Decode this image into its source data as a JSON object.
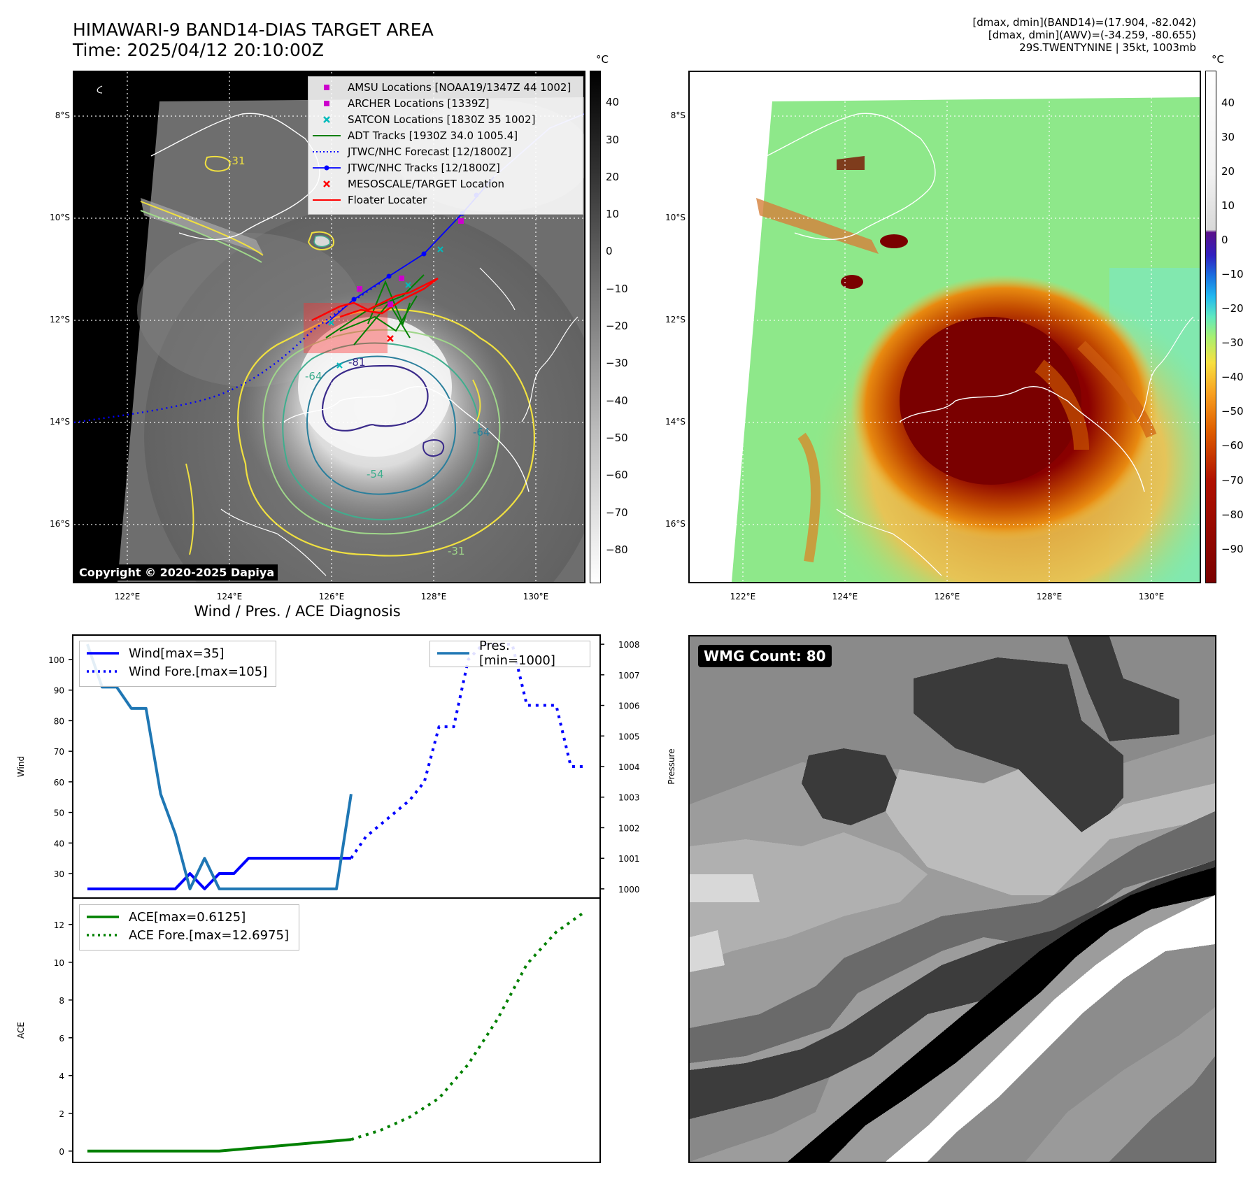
{
  "header": {
    "title_line1": "HIMAWARI-9 BAND14-DIAS TARGET AREA",
    "title_line2": "Time: 2025/04/12 20:10:00Z",
    "info_line1": "[dmax, dmin](BAND14)=(17.904, -82.042)",
    "info_line2": "[dmax, dmin](AWV)=(-34.259, -80.655)",
    "info_line3": "29S.TWENTYNINE | 35kt, 1003mb"
  },
  "map_panel": {
    "lat_labels": [
      "8°S",
      "10°S",
      "12°S",
      "14°S",
      "16°S"
    ],
    "lon_labels": [
      "122°E",
      "124°E",
      "126°E",
      "128°E",
      "130°E"
    ],
    "copyright": "Copyright © 2020-2025 Dapiya",
    "colorbar_unit": "°C",
    "colorbar_ticks": [
      "40",
      "30",
      "20",
      "10",
      "0",
      "−10",
      "−20",
      "−30",
      "−40",
      "−50",
      "−60",
      "−70",
      "−80"
    ],
    "contour_labels": [
      "-31",
      "-64",
      "-81",
      "-54",
      "-64",
      "-31"
    ],
    "legend": [
      {
        "label": "AMSU Locations [NOAA19/1347Z 44 1002]",
        "marker": "square",
        "color": "#cc00cc"
      },
      {
        "label": "ARCHER Locations [1339Z]",
        "marker": "square",
        "color": "#cc00cc"
      },
      {
        "label": "SATCON Locations [1830Z 35 1002]",
        "marker": "x",
        "color": "#00bbbb"
      },
      {
        "label": "ADT Tracks [1930Z 34.0 1005.4]",
        "marker": "line",
        "color": "#008000"
      },
      {
        "label": "JTWC/NHC Forecast [12/1800Z]",
        "marker": "dotted",
        "color": "#0000ff"
      },
      {
        "label": "JTWC/NHC Tracks [12/1800Z]",
        "marker": "line-dot",
        "color": "#0000ff"
      },
      {
        "label": "MESOSCALE/TARGET Location",
        "marker": "x",
        "color": "#ff0000"
      },
      {
        "label": "Floater Locater",
        "marker": "line",
        "color": "#ff0000"
      }
    ]
  },
  "awv_panel": {
    "lat_labels": [
      "8°S",
      "10°S",
      "12°S",
      "14°S",
      "16°S"
    ],
    "lon_labels": [
      "122°E",
      "124°E",
      "126°E",
      "128°E",
      "130°E"
    ],
    "colorbar_unit": "°C",
    "colorbar_ticks": [
      "40",
      "30",
      "20",
      "10",
      "0",
      "−10",
      "−20",
      "−30",
      "−40",
      "−50",
      "−60",
      "−70",
      "−80",
      "−90"
    ]
  },
  "wmg_panel": {
    "badge": "WMG Count: 80"
  },
  "chart_data": [
    {
      "type": "line",
      "title": "Wind / Pres. / ACE Diagnosis",
      "ylabel": "Wind",
      "y2label": "Pressure",
      "ylim": [
        22,
        108
      ],
      "y2lim": [
        999.7,
        1008.3
      ],
      "y_ticks": [
        "30",
        "40",
        "50",
        "60",
        "70",
        "80",
        "90",
        "100"
      ],
      "y2_ticks": [
        "1000",
        "1001",
        "1002",
        "1003",
        "1004",
        "1005",
        "1006",
        "1007",
        "1008"
      ],
      "x_index_range": [
        -1,
        35
      ],
      "series": [
        {
          "name": "Wind[max=35]",
          "axis": "left",
          "style": "solid",
          "color": "#0000ff",
          "x": [
            0,
            1,
            2,
            3,
            4,
            5,
            6,
            7,
            8,
            9,
            10,
            11,
            12,
            13,
            14,
            15,
            16,
            17,
            18
          ],
          "y": [
            25,
            25,
            25,
            25,
            25,
            25,
            25,
            30,
            25,
            30,
            30,
            35,
            35,
            35,
            35,
            35,
            35,
            35,
            35
          ]
        },
        {
          "name": "Wind Fore.[max=105]",
          "axis": "left",
          "style": "dotted",
          "color": "#0000ff",
          "x": [
            18,
            19,
            20,
            21,
            22,
            23,
            24,
            25,
            26,
            27,
            28,
            29,
            30,
            31,
            32,
            33,
            34
          ],
          "y": [
            35,
            42,
            46,
            50,
            54,
            60,
            78,
            78,
            100,
            105,
            105,
            105,
            85,
            85,
            85,
            65,
            65
          ]
        },
        {
          "name": "Pres.[min=1000]",
          "axis": "right",
          "style": "solid",
          "color": "#1f77b4",
          "x": [
            0,
            1,
            2,
            3,
            4,
            5,
            6,
            7,
            8,
            9,
            10,
            11,
            12,
            13,
            14,
            15,
            16,
            17,
            18
          ],
          "y": [
            1008,
            1006.6,
            1006.6,
            1005.9,
            1005.9,
            1003.1,
            1001.8,
            1000,
            1001,
            1000,
            1000,
            1000,
            1000,
            1000,
            1000,
            1000,
            1000,
            1000,
            1003.1
          ]
        }
      ]
    },
    {
      "type": "line",
      "ylabel": "ACE",
      "ylim": [
        -0.6,
        13.4
      ],
      "y_ticks": [
        "0",
        "2",
        "4",
        "6",
        "8",
        "10",
        "12"
      ],
      "x_index_range": [
        -1,
        35
      ],
      "series": [
        {
          "name": "ACE[max=0.6125]",
          "style": "solid",
          "color": "#008000",
          "x": [
            0,
            9,
            18
          ],
          "y": [
            0,
            0,
            0.6125
          ]
        },
        {
          "name": "ACE Fore.[max=12.6975]",
          "style": "dotted",
          "color": "#008000",
          "x": [
            18,
            20,
            22,
            24,
            26,
            28,
            30,
            32,
            34
          ],
          "y": [
            0.6125,
            1.1,
            1.8,
            2.8,
            4.6,
            7.0,
            9.9,
            11.6,
            12.6975
          ]
        }
      ]
    }
  ]
}
